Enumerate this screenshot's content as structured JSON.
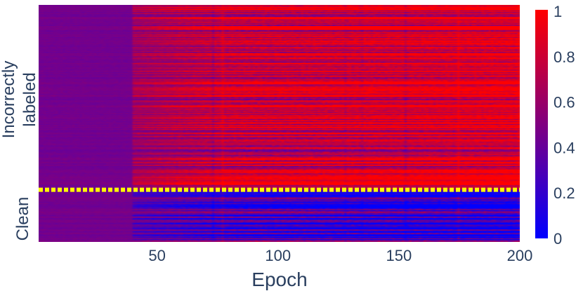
{
  "chart_data": {
    "type": "heatmap",
    "xlabel": "Epoch",
    "x_range": [
      1,
      200
    ],
    "x_ticks": [
      50,
      100,
      150,
      200
    ],
    "y_groups": [
      {
        "label": "Incorrectly labeled",
        "label_lines": [
          "Incorrectly",
          "labeled"
        ],
        "share": 0.78
      },
      {
        "label": "Clean",
        "label_lines": [
          "Clean"
        ],
        "share": 0.22
      }
    ],
    "separator": {
      "color": "#ffff00",
      "style": "dotted"
    },
    "colorscale": {
      "range": [
        0,
        1
      ],
      "ticks": [
        "0",
        "0.2",
        "0.4",
        "0.6",
        "0.8",
        "1"
      ],
      "low_color": "#0000ff",
      "mid_color": "#800080",
      "high_color": "#ff0000"
    },
    "value_trends": {
      "incorrectly_labeled": {
        "epoch_1": 0.45,
        "epoch_80": 0.8,
        "epoch_200": 0.95
      },
      "clean": {
        "epoch_1": 0.45,
        "epoch_80": 0.25,
        "epoch_200": 0.1
      }
    }
  }
}
